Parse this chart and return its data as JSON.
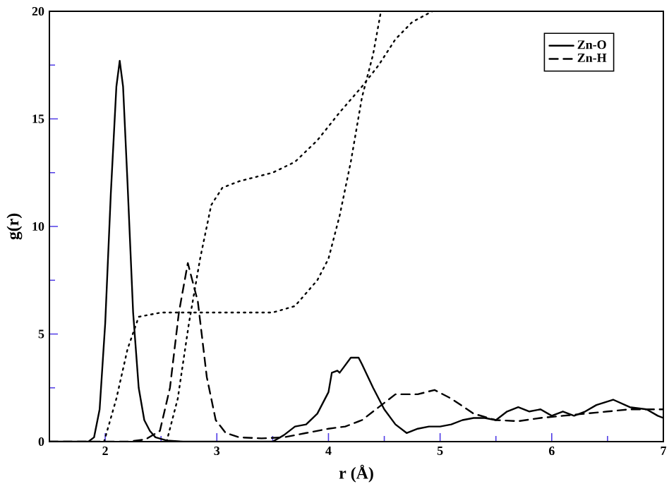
{
  "chart_data": {
    "type": "line",
    "xlabel": "r (Å)",
    "ylabel": "g(r)",
    "xlim": [
      1.5,
      7
    ],
    "ylim": [
      0,
      20
    ],
    "xticks": [
      2,
      3,
      4,
      5,
      6,
      7
    ],
    "yticks": [
      0,
      5,
      10,
      15,
      20
    ],
    "grid": false,
    "legend": "top right",
    "marker": "none",
    "series": [
      {
        "name": "Zn-O",
        "color": "#000000",
        "line_style": "solid",
        "x": [
          1.5,
          1.85,
          1.9,
          1.95,
          2.0,
          2.05,
          2.1,
          2.13,
          2.16,
          2.2,
          2.25,
          2.3,
          2.35,
          2.4,
          2.45,
          2.55,
          2.7,
          3.5,
          3.6,
          3.7,
          3.8,
          3.9,
          4.0,
          4.03,
          4.08,
          4.1,
          4.2,
          4.27,
          4.3,
          4.4,
          4.5,
          4.6,
          4.7,
          4.8,
          4.9,
          5.0,
          5.1,
          5.2,
          5.3,
          5.4,
          5.5,
          5.6,
          5.7,
          5.8,
          5.9,
          6.0,
          6.1,
          6.2,
          6.3,
          6.4,
          6.55,
          6.7,
          6.85,
          6.95,
          7.0
        ],
        "values": [
          0,
          0,
          0.2,
          1.5,
          5.5,
          11.5,
          16.5,
          17.7,
          16.5,
          12,
          6,
          2.5,
          1.0,
          0.5,
          0.2,
          0.05,
          0,
          0,
          0.3,
          0.7,
          0.8,
          1.3,
          2.3,
          3.2,
          3.3,
          3.2,
          3.9,
          3.9,
          3.6,
          2.5,
          1.5,
          0.8,
          0.4,
          0.6,
          0.7,
          0.7,
          0.8,
          1.0,
          1.1,
          1.1,
          1.0,
          1.4,
          1.6,
          1.4,
          1.5,
          1.2,
          1.4,
          1.2,
          1.4,
          1.7,
          1.95,
          1.6,
          1.5,
          1.2,
          1.1
        ]
      },
      {
        "name": "Zn-H",
        "color": "#000000",
        "line_style": "dashed",
        "x": [
          1.5,
          2.2,
          2.36,
          2.49,
          2.58,
          2.66,
          2.74,
          2.83,
          2.91,
          2.99,
          3.08,
          3.2,
          3.4,
          3.6,
          3.8,
          4.0,
          4.15,
          4.3,
          4.5,
          4.6,
          4.8,
          4.95,
          5.1,
          5.3,
          5.5,
          5.7,
          5.9,
          6.1,
          6.3,
          6.5,
          6.7,
          6.9,
          7.0
        ],
        "values": [
          0,
          0,
          0.1,
          0.5,
          2.5,
          6,
          8.3,
          6.5,
          3,
          1,
          0.4,
          0.2,
          0.15,
          0.2,
          0.4,
          0.6,
          0.7,
          1.0,
          1.8,
          2.2,
          2.2,
          2.4,
          2.0,
          1.3,
          1.0,
          0.95,
          1.1,
          1.2,
          1.3,
          1.4,
          1.5,
          1.5,
          1.5
        ]
      },
      {
        "color": "#000000",
        "line_style": "dotted",
        "x": [
          1.99,
          2.1,
          2.2,
          2.3,
          2.5,
          3.0,
          3.5,
          3.7,
          3.9,
          4.0,
          4.1,
          4.2,
          4.3,
          4.4,
          4.47
        ],
        "values": [
          0,
          2,
          4.3,
          5.8,
          6,
          6,
          6.0,
          6.3,
          7.5,
          8.5,
          10.5,
          13,
          16,
          18,
          20
        ]
      },
      {
        "color": "#000000",
        "line_style": "dotted",
        "x": [
          2.55,
          2.65,
          2.75,
          2.85,
          2.95,
          3.05,
          3.2,
          3.5,
          3.7,
          3.9,
          4.1,
          4.3,
          4.45,
          4.6,
          4.75,
          4.93
        ],
        "values": [
          0,
          2,
          5.5,
          8.5,
          11,
          11.8,
          12.1,
          12.5,
          13,
          14,
          15.3,
          16.5,
          17.5,
          18.7,
          19.5,
          20
        ]
      }
    ]
  }
}
